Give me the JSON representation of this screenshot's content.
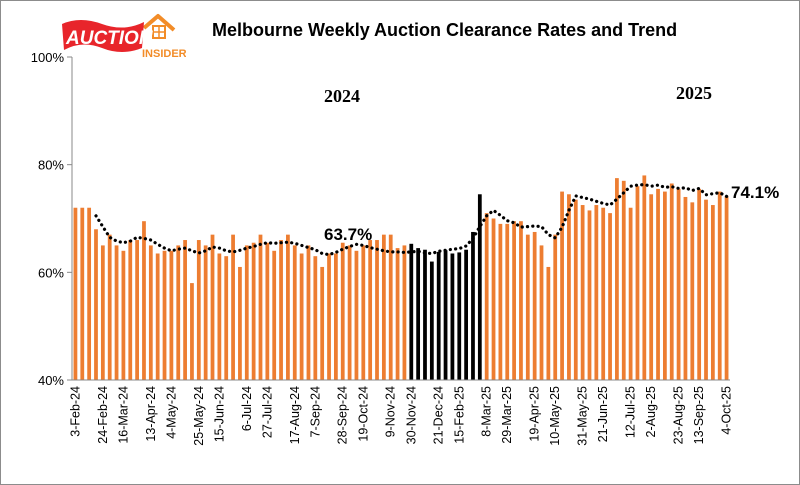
{
  "brand": {
    "line1": "AUCTION",
    "line2": "INSIDER",
    "red": "#e8252b",
    "orange": "#f28c28"
  },
  "chart_data": {
    "type": "bar",
    "title": "Melbourne Weekly Auction Clearance Rates and Trend",
    "ylim": [
      40,
      100
    ],
    "yticks": [
      "40%",
      "60%",
      "80%",
      "100%"
    ],
    "year_labels": [
      "2024",
      "2025"
    ],
    "annotations": {
      "mid_value": "63.7%",
      "end_value": "74.1%"
    },
    "grid": false,
    "xtick_labels": [
      "3-Feb-24",
      "24-Feb-24",
      "16-Mar-24",
      "13-Apr-24",
      "4-May-24",
      "25-May-24",
      "15-Jun-24",
      "6-Jul-24",
      "27-Jul-24",
      "17-Aug-24",
      "7-Sep-24",
      "28-Sep-24",
      "19-Oct-24",
      "9-Nov-24",
      "30-Nov-24",
      "21-Dec-24",
      "15-Feb-25",
      "8-Mar-25",
      "29-Mar-25",
      "19-Apr-25",
      "10-May-25",
      "31-May-25",
      "21-Jun-25",
      "12-Jul-25",
      "2-Aug-25",
      "23-Aug-25",
      "13-Sep-25",
      "4-Oct-25"
    ],
    "colors": {
      "bars": "#ed7d31",
      "highlight": "#000000",
      "trend": "#000000"
    },
    "highlight_range": [
      49,
      59
    ],
    "series": [
      {
        "type": "bar",
        "values": [
          72,
          72,
          72,
          68,
          65,
          67,
          65,
          64,
          66,
          66,
          69.5,
          65,
          63.5,
          64,
          64,
          65,
          66,
          58,
          66,
          65,
          67,
          63.5,
          63,
          67,
          61,
          65,
          65.5,
          67,
          65.5,
          64,
          66,
          67,
          65,
          63.5,
          65,
          63,
          61,
          63.5,
          63.5,
          65.5,
          65,
          64,
          65,
          66,
          66,
          67,
          67,
          64.5,
          65,
          65.3,
          64.5,
          64.2,
          62,
          63.8,
          64.1,
          63.5,
          63.7,
          64.2,
          67.5,
          74.5,
          71,
          70,
          69,
          69,
          69.5,
          69.5,
          67,
          67.5,
          65,
          61,
          67,
          75,
          74.5,
          73.5,
          72.5,
          71.5,
          72.5,
          72,
          71,
          77.5,
          77,
          72,
          76,
          78,
          74.5,
          75.5,
          75,
          76.5,
          75.5,
          74,
          73,
          75.5,
          73.5,
          72.5,
          75,
          74.1
        ]
      },
      {
        "type": "line",
        "style": "dotted",
        "values": [
          null,
          null,
          null,
          70.5,
          68.5,
          66.5,
          65.8,
          65.5,
          65.8,
          66.5,
          66.3,
          66,
          65.2,
          64.5,
          64,
          64.3,
          64.5,
          64,
          63.6,
          64,
          64.7,
          64.5,
          64,
          63.8,
          64.1,
          64.5,
          64.8,
          65.2,
          65.5,
          65.4,
          65.5,
          65.6,
          65.4,
          65,
          64.6,
          64.2,
          63.5,
          63.3,
          63.7,
          64.3,
          64.8,
          65.2,
          65,
          64.6,
          64.3,
          64,
          63.8,
          63.8,
          63.7,
          63.8,
          63.9,
          63.6,
          63.5,
          63.9,
          64.1,
          64.3,
          64.4,
          64.9,
          66.3,
          68.5,
          70.5,
          71.5,
          70.6,
          69.6,
          69.2,
          68.4,
          68.5,
          68.6,
          68.5,
          67,
          66.4,
          68.4,
          71.5,
          74.2,
          73.9,
          73.6,
          73.2,
          72.8,
          72.5,
          73.6,
          74.8,
          76,
          76.2,
          76.3,
          76,
          76.2,
          75.8,
          75.9,
          75.6,
          75.7,
          75.2,
          75.6,
          74.4,
          74.6,
          74.8,
          74.1
        ]
      }
    ]
  }
}
